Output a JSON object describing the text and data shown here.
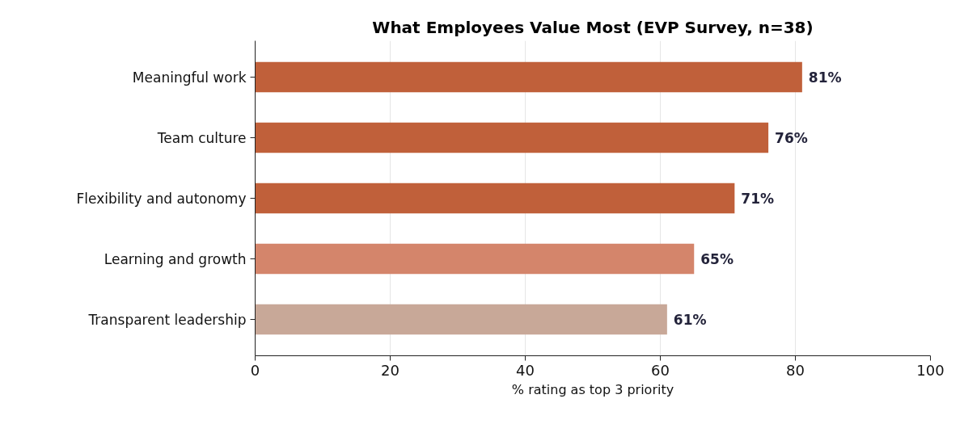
{
  "chart_data": {
    "type": "bar",
    "orientation": "horizontal",
    "title": "What Employees Value Most (EVP Survey, n=38)",
    "xlabel": "% rating as top 3 priority",
    "categories": [
      "Meaningful work",
      "Team culture",
      "Flexibility and autonomy",
      "Learning and growth",
      "Transparent leadership"
    ],
    "values": [
      81,
      76,
      71,
      65,
      61
    ],
    "colors": [
      "#c0603a",
      "#c0603a",
      "#c0603a",
      "#d4856b",
      "#c8a898"
    ],
    "value_labels": [
      "81%",
      "76%",
      "71%",
      "65%",
      "61%"
    ],
    "xlim": [
      0,
      100
    ],
    "xticks": [
      0,
      20,
      40,
      60,
      80,
      100
    ],
    "grid": "x"
  }
}
